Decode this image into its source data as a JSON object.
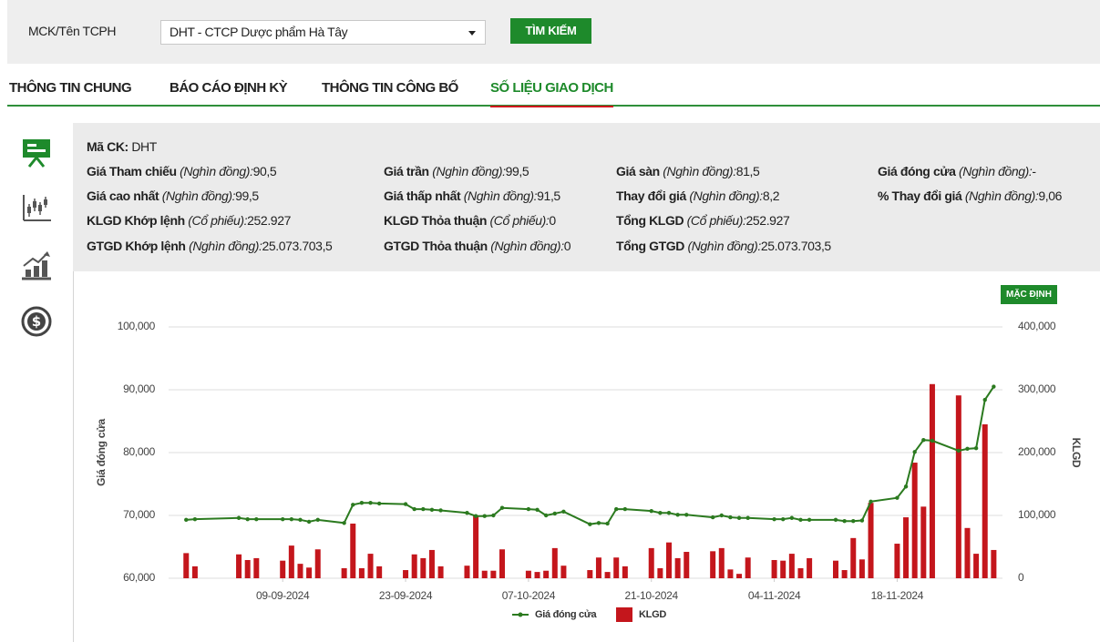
{
  "search": {
    "label": "MCK/Tên TCPH",
    "selected": "DHT - CTCP Dược phẩm Hà Tây",
    "button": "TÌM KIẾM"
  },
  "tabs": [
    "THÔNG TIN CHUNG",
    "BÁO CÁO ĐỊNH KỲ",
    "THÔNG TIN CÔNG BỐ",
    "SỐ LIỆU GIAO DỊCH"
  ],
  "active_tab": 3,
  "info": {
    "rows": [
      [
        {
          "label": "Mã CK:",
          "value": "DHT"
        }
      ],
      [
        {
          "label": "Giá Tham chiếu",
          "unit": "(Nghìn đồng):",
          "value": "90,5"
        },
        {
          "label": "Giá trần",
          "unit": "(Nghìn đồng):",
          "value": "99,5"
        },
        {
          "label": "Giá sàn",
          "unit": "(Nghìn đồng):",
          "value": "81,5"
        },
        {
          "label": "Giá đóng cửa",
          "unit": "(Nghìn đồng):",
          "value": "-"
        }
      ],
      [
        {
          "label": "Giá cao nhất",
          "unit": "(Nghìn đồng):",
          "value": "99,5"
        },
        {
          "label": "Giá thấp nhất",
          "unit": "(Nghìn đồng):",
          "value": "91,5"
        },
        {
          "label": "Thay đổi giá",
          "unit": "(Nghìn đồng):",
          "value": "8,2"
        },
        {
          "label": "% Thay đổi giá",
          "unit": "(Nghìn đồng):",
          "value": "9,06"
        }
      ],
      [
        {
          "label": "KLGD Khớp lệnh",
          "unit": "(Cổ phiếu):",
          "value": "252.927"
        },
        {
          "label": "KLGD Thỏa thuận",
          "unit": "(Cổ phiếu):",
          "value": "0"
        },
        {
          "label": "Tổng KLGD",
          "unit": "(Cổ phiếu):",
          "value": "252.927"
        }
      ],
      [
        {
          "label": "GTGD Khớp lệnh",
          "unit": "(Nghìn đồng):",
          "value": "25.073.703,5"
        },
        {
          "label": "GTGD Thỏa thuận",
          "unit": "(Nghìn đồng):",
          "value": "0"
        },
        {
          "label": "Tổng GTGD",
          "unit": "(Nghìn đồng):",
          "value": "25.073.703,5"
        }
      ]
    ]
  },
  "reset_button": "MẶC ĐỊNH",
  "chart_data": {
    "type": "combo",
    "ylabel": "Giá đóng cửa",
    "y2label": "KLGD",
    "x": [
      "29-08-2024",
      "30-08-2024",
      "04-09-2024",
      "05-09-2024",
      "06-09-2024",
      "09-09-2024",
      "10-09-2024",
      "11-09-2024",
      "12-09-2024",
      "13-09-2024",
      "16-09-2024",
      "17-09-2024",
      "18-09-2024",
      "19-09-2024",
      "20-09-2024",
      "23-09-2024",
      "24-09-2024",
      "25-09-2024",
      "26-09-2024",
      "27-09-2024",
      "30-09-2024",
      "01-10-2024",
      "02-10-2024",
      "03-10-2024",
      "04-10-2024",
      "07-10-2024",
      "08-10-2024",
      "09-10-2024",
      "10-10-2024",
      "11-10-2024",
      "14-10-2024",
      "15-10-2024",
      "16-10-2024",
      "17-10-2024",
      "18-10-2024",
      "21-10-2024",
      "22-10-2024",
      "23-10-2024",
      "24-10-2024",
      "25-10-2024",
      "28-10-2024",
      "29-10-2024",
      "30-10-2024",
      "31-10-2024",
      "01-11-2024",
      "04-11-2024",
      "05-11-2024",
      "06-11-2024",
      "07-11-2024",
      "08-11-2024",
      "11-11-2024",
      "12-11-2024",
      "13-11-2024",
      "14-11-2024",
      "15-11-2024",
      "18-11-2024",
      "19-11-2024",
      "20-11-2024",
      "21-11-2024",
      "22-11-2024",
      "25-11-2024",
      "26-11-2024",
      "27-11-2024",
      "28-11-2024",
      "29-11-2024"
    ],
    "series": [
      {
        "name": "Giá đóng cửa",
        "type": "line",
        "color": "#2b7a1f",
        "values": [
          69300,
          69400,
          69600,
          69400,
          69400,
          69400,
          69400,
          69300,
          69000,
          69300,
          68800,
          71700,
          72000,
          72000,
          71900,
          71800,
          71000,
          71000,
          70900,
          70800,
          70400,
          69900,
          69900,
          70000,
          71200,
          71000,
          70900,
          70000,
          70300,
          70600,
          68600,
          68800,
          68700,
          71000,
          71000,
          70700,
          70400,
          70400,
          70100,
          70100,
          69700,
          70000,
          69700,
          69600,
          69600,
          69400,
          69400,
          69600,
          69300,
          69300,
          69300,
          69100,
          69100,
          69200,
          72200,
          72800,
          74600,
          80100,
          82000,
          81900,
          80300,
          80600,
          80700,
          88400,
          90500
        ]
      },
      {
        "name": "KLGD",
        "type": "bar",
        "axis": "y2",
        "color": "#c4161c",
        "values": [
          40000,
          19000,
          38000,
          29000,
          32000,
          28000,
          52000,
          23000,
          17000,
          46000,
          16000,
          87000,
          16000,
          39000,
          19000,
          13000,
          38000,
          32000,
          45000,
          19000,
          20000,
          100000,
          12000,
          12000,
          46000,
          12000,
          10000,
          12000,
          48000,
          20000,
          13000,
          33000,
          10000,
          33000,
          19000,
          48000,
          16000,
          57000,
          32000,
          42000,
          43000,
          48000,
          14000,
          7000,
          33000,
          29000,
          28000,
          39000,
          16000,
          32000,
          28000,
          13000,
          64000,
          30000,
          120000,
          55000,
          97000,
          184000,
          114000,
          309000,
          291000,
          80000,
          39000,
          245000,
          45000
        ]
      }
    ],
    "xlim": [
      "27-08-2024",
      "30-11-2024"
    ],
    "xticks": [
      "09-09-2024",
      "23-09-2024",
      "07-10-2024",
      "21-10-2024",
      "04-11-2024",
      "18-11-2024"
    ],
    "ylim": [
      60000,
      100000
    ],
    "yticks": [
      {
        "value": 60000,
        "label": "60,000"
      },
      {
        "value": 70000,
        "label": "70,000"
      },
      {
        "value": 80000,
        "label": "80,000"
      },
      {
        "value": 90000,
        "label": "90,000"
      },
      {
        "value": 100000,
        "label": "100,000"
      }
    ],
    "y2lim": [
      0,
      400000
    ],
    "y2ticks": [
      0,
      {
        "value": 100000,
        "label": "100,000"
      },
      {
        "value": 200000,
        "label": "200,000"
      },
      {
        "value": 300000,
        "label": "300,000"
      },
      {
        "value": 400000,
        "label": "400,000"
      }
    ],
    "grid": true,
    "legend": "bottom"
  }
}
